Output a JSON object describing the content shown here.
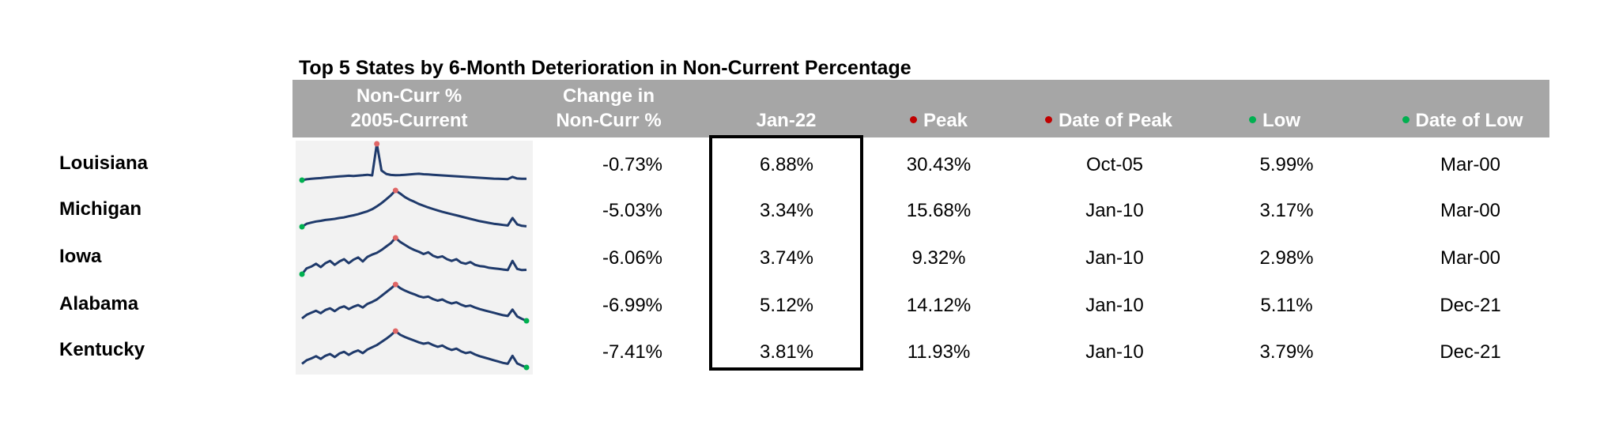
{
  "title": "Top 5 States by 6-Month Deterioration in Non-Current Percentage",
  "headers": {
    "noncurr_line1": "Non-Curr %",
    "noncurr_line2": "2005-Current",
    "change_line1": "Change in",
    "change_line2": "Non-Curr %",
    "jan22": "Jan-22",
    "peak": "Peak",
    "date_of_peak": "Date of Peak",
    "low": "Low",
    "date_of_low": "Date of Low"
  },
  "colors": {
    "header_bg": "#a6a6a6",
    "sparkline": "#1f3a6b",
    "peak_marker": "#e06666",
    "low_marker": "#00b050",
    "peak_dot": "#c00000",
    "low_dot": "#00b050"
  },
  "rows": [
    {
      "state": "Louisiana",
      "change": "-0.73%",
      "jan22": "6.88%",
      "peak": "30.43%",
      "date_of_peak": "Oct-05",
      "low": "5.99%",
      "date_of_low": "Mar-00"
    },
    {
      "state": "Michigan",
      "change": "-5.03%",
      "jan22": "3.34%",
      "peak": "15.68%",
      "date_of_peak": "Jan-10",
      "low": "3.17%",
      "date_of_low": "Mar-00"
    },
    {
      "state": "Iowa",
      "change": "-6.06%",
      "jan22": "3.74%",
      "peak": "9.32%",
      "date_of_peak": "Jan-10",
      "low": "2.98%",
      "date_of_low": "Mar-00"
    },
    {
      "state": "Alabama",
      "change": "-6.99%",
      "jan22": "5.12%",
      "peak": "14.12%",
      "date_of_peak": "Jan-10",
      "low": "5.11%",
      "date_of_low": "Dec-21"
    },
    {
      "state": "Kentucky",
      "change": "-7.41%",
      "jan22": "3.81%",
      "peak": "11.93%",
      "date_of_peak": "Jan-10",
      "low": "3.79%",
      "date_of_low": "Dec-21"
    }
  ],
  "sparklines": [
    {
      "state": "Louisiana",
      "values": [
        6.0,
        6.6,
        6.9,
        7.2,
        7.4,
        7.7,
        8.0,
        8.3,
        8.5,
        8.7,
        9.0,
        8.8,
        9.1,
        9.3,
        9.6,
        9.2,
        30.43,
        12.5,
        10.2,
        9.5,
        9.3,
        9.4,
        9.6,
        9.9,
        10.1,
        10.3,
        10.0,
        9.8,
        9.6,
        9.4,
        9.2,
        9.0,
        8.8,
        8.6,
        8.4,
        8.2,
        8.0,
        7.8,
        7.6,
        7.4,
        7.2,
        7.0,
        6.9,
        6.8,
        6.7,
        8.2,
        7.1,
        6.9,
        6.9
      ]
    },
    {
      "state": "Michigan",
      "values": [
        3.17,
        4.2,
        4.6,
        5.0,
        5.2,
        5.5,
        5.7,
        5.9,
        6.2,
        6.4,
        6.8,
        7.1,
        7.5,
        8.0,
        8.5,
        9.2,
        10.2,
        11.3,
        12.6,
        14.0,
        15.68,
        14.6,
        13.4,
        12.5,
        11.8,
        11.0,
        10.4,
        9.8,
        9.3,
        8.8,
        8.3,
        7.9,
        7.5,
        7.1,
        6.7,
        6.3,
        5.9,
        5.5,
        5.1,
        4.8,
        4.5,
        4.2,
        4.0,
        3.8,
        3.6,
        6.2,
        4.0,
        3.5,
        3.34
      ]
    },
    {
      "state": "Iowa",
      "values": [
        2.98,
        4.0,
        4.3,
        4.8,
        4.2,
        4.9,
        5.3,
        4.6,
        5.2,
        5.6,
        4.9,
        5.5,
        5.9,
        5.2,
        6.0,
        6.4,
        6.7,
        7.2,
        7.8,
        8.4,
        9.32,
        8.6,
        8.1,
        7.6,
        7.2,
        6.9,
        6.5,
        6.8,
        6.2,
        5.9,
        6.1,
        5.6,
        5.3,
        5.6,
        5.0,
        4.8,
        5.1,
        4.6,
        4.4,
        4.3,
        4.1,
        4.0,
        3.9,
        3.8,
        3.7,
        5.3,
        3.9,
        3.7,
        3.74
      ]
    },
    {
      "state": "Alabama",
      "values": [
        5.7,
        6.6,
        7.1,
        7.6,
        7.0,
        7.8,
        8.2,
        7.5,
        8.3,
        8.7,
        8.0,
        8.6,
        9.0,
        8.4,
        9.3,
        9.8,
        10.4,
        11.3,
        12.2,
        13.1,
        14.12,
        13.2,
        12.6,
        12.1,
        11.7,
        11.2,
        10.9,
        11.1,
        10.5,
        10.1,
        10.4,
        9.8,
        9.4,
        9.7,
        9.1,
        8.7,
        8.9,
        8.4,
        8.0,
        7.7,
        7.4,
        7.1,
        6.8,
        6.5,
        6.3,
        7.9,
        6.2,
        5.6,
        5.11
      ]
    },
    {
      "state": "Kentucky",
      "values": [
        4.6,
        5.4,
        5.8,
        6.3,
        5.7,
        6.4,
        6.8,
        6.1,
        6.9,
        7.3,
        6.6,
        7.2,
        7.6,
        7.0,
        7.8,
        8.3,
        8.8,
        9.5,
        10.2,
        11.0,
        11.93,
        11.1,
        10.6,
        10.2,
        9.8,
        9.4,
        9.1,
        9.3,
        8.8,
        8.4,
        8.7,
        8.1,
        7.7,
        8.0,
        7.4,
        7.0,
        7.2,
        6.7,
        6.3,
        6.0,
        5.7,
        5.4,
        5.1,
        4.8,
        4.6,
        6.4,
        4.7,
        4.2,
        3.79
      ]
    }
  ]
}
